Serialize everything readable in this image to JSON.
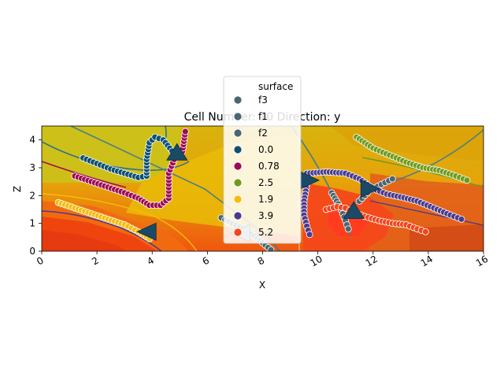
{
  "chart_data": {
    "type": "scatter",
    "title": "Cell Number: 10 Direction: y",
    "xlabel": "X",
    "ylabel": "Z",
    "xlim": [
      0,
      16
    ],
    "ylim": [
      0,
      4.5
    ],
    "x_ticks": [
      "0",
      "2",
      "4",
      "6",
      "8",
      "10",
      "12",
      "14",
      "16"
    ],
    "y_ticks": [
      "0",
      "1",
      "2",
      "3",
      "4"
    ],
    "grid": false,
    "legend": {
      "title": "surface",
      "placement": "top-center",
      "entries": [
        {
          "label": "f3",
          "color": "#4a6670"
        },
        {
          "label": "f1",
          "color": "#4a6670"
        },
        {
          "label": "f2",
          "color": "#4a6670"
        },
        {
          "label": "0.0",
          "color": "#0e5073"
        },
        {
          "label": "0.78",
          "color": "#9c0b55"
        },
        {
          "label": "2.5",
          "color": "#6f9b1c"
        },
        {
          "label": "1.9",
          "color": "#f6bc0c"
        },
        {
          "label": "3.9",
          "color": "#4c3b8c"
        },
        {
          "label": "5.2",
          "color": "#f4441a"
        }
      ]
    },
    "series": [
      {
        "name": "f3",
        "color": "#4a6670",
        "points": [
          [
            6.5,
            1.2
          ],
          [
            6.9,
            1.0
          ],
          [
            7.3,
            0.8
          ],
          [
            7.7,
            0.55
          ],
          [
            8.0,
            0.3
          ],
          [
            8.3,
            0.05
          ]
        ]
      },
      {
        "name": "f1",
        "color": "#4a6670",
        "points": [
          [
            10.5,
            2.1
          ],
          [
            10.8,
            1.6
          ],
          [
            11.0,
            1.1
          ],
          [
            11.1,
            0.8
          ]
        ]
      },
      {
        "name": "f2",
        "color": "#4a6670",
        "points": [
          [
            11.5,
            1.8
          ],
          [
            11.9,
            2.2
          ],
          [
            12.3,
            2.4
          ],
          [
            12.7,
            2.6
          ]
        ]
      },
      {
        "name": "0.0",
        "color": "#0e5073",
        "points": [
          [
            1.5,
            3.35
          ],
          [
            2.0,
            3.15
          ],
          [
            2.5,
            2.95
          ],
          [
            3.0,
            2.8
          ],
          [
            3.5,
            2.65
          ],
          [
            3.8,
            2.7
          ],
          [
            3.8,
            3.3
          ],
          [
            3.9,
            3.9
          ],
          [
            4.1,
            4.1
          ],
          [
            4.4,
            4.0
          ],
          [
            4.8,
            3.5
          ]
        ]
      },
      {
        "name": "0.78",
        "color": "#9c0b55",
        "points": [
          [
            1.2,
            2.7
          ],
          [
            1.8,
            2.5
          ],
          [
            2.4,
            2.3
          ],
          [
            3.0,
            2.1
          ],
          [
            3.5,
            1.9
          ],
          [
            3.9,
            1.65
          ],
          [
            4.3,
            1.65
          ],
          [
            4.6,
            1.9
          ],
          [
            4.6,
            2.8
          ],
          [
            4.8,
            3.3
          ],
          [
            5.1,
            3.6
          ],
          [
            5.2,
            4.3
          ]
        ]
      },
      {
        "name": "2.5",
        "color": "#6f9b1c",
        "points": [
          [
            11.4,
            4.1
          ],
          [
            12.0,
            3.7
          ],
          [
            12.6,
            3.45
          ],
          [
            13.2,
            3.2
          ],
          [
            13.8,
            3.0
          ],
          [
            14.4,
            2.9
          ],
          [
            15.0,
            2.7
          ],
          [
            15.4,
            2.55
          ]
        ]
      },
      {
        "name": "1.9",
        "color": "#f6bc0c",
        "points": [
          [
            0.6,
            1.75
          ],
          [
            1.2,
            1.55
          ],
          [
            1.8,
            1.35
          ],
          [
            2.4,
            1.15
          ],
          [
            3.0,
            0.95
          ],
          [
            3.5,
            0.7
          ],
          [
            3.9,
            0.45
          ]
        ]
      },
      {
        "name": "3.9",
        "color": "#4c3b8c",
        "points": [
          [
            9.6,
            2.8
          ],
          [
            10.3,
            2.85
          ],
          [
            11.0,
            2.8
          ],
          [
            11.5,
            2.6
          ],
          [
            12.0,
            2.25
          ],
          [
            12.5,
            2.05
          ],
          [
            13.0,
            1.95
          ],
          [
            13.6,
            1.8
          ],
          [
            14.2,
            1.55
          ],
          [
            14.8,
            1.3
          ],
          [
            15.2,
            1.15
          ],
          [
            9.6,
            2.4
          ],
          [
            9.5,
            1.8
          ],
          [
            9.5,
            1.3
          ],
          [
            9.6,
            0.9
          ],
          [
            9.7,
            0.6
          ]
        ]
      },
      {
        "name": "5.2",
        "color": "#f4441a",
        "points": [
          [
            10.3,
            1.5
          ],
          [
            10.7,
            1.6
          ],
          [
            11.0,
            1.55
          ],
          [
            11.3,
            1.4
          ],
          [
            11.7,
            1.25
          ],
          [
            12.2,
            1.1
          ],
          [
            12.7,
            1.0
          ],
          [
            13.2,
            0.95
          ],
          [
            13.6,
            0.8
          ],
          [
            13.9,
            0.7
          ]
        ]
      }
    ],
    "arrows": [
      {
        "x": 3.8,
        "y": 0.7,
        "direction": "left",
        "color": "#1b4a66"
      },
      {
        "x": 4.9,
        "y": 3.5,
        "direction": "up",
        "color": "#1b4a66"
      },
      {
        "x": 7.2,
        "y": 0.65,
        "direction": "left",
        "color": "#8fa9b4"
      },
      {
        "x": 9.7,
        "y": 2.55,
        "direction": "right",
        "color": "#1b4a66"
      },
      {
        "x": 11.3,
        "y": 1.4,
        "direction": "up",
        "color": "#1b4a66"
      },
      {
        "x": 11.9,
        "y": 2.25,
        "direction": "right",
        "color": "#1b4a66"
      }
    ]
  }
}
